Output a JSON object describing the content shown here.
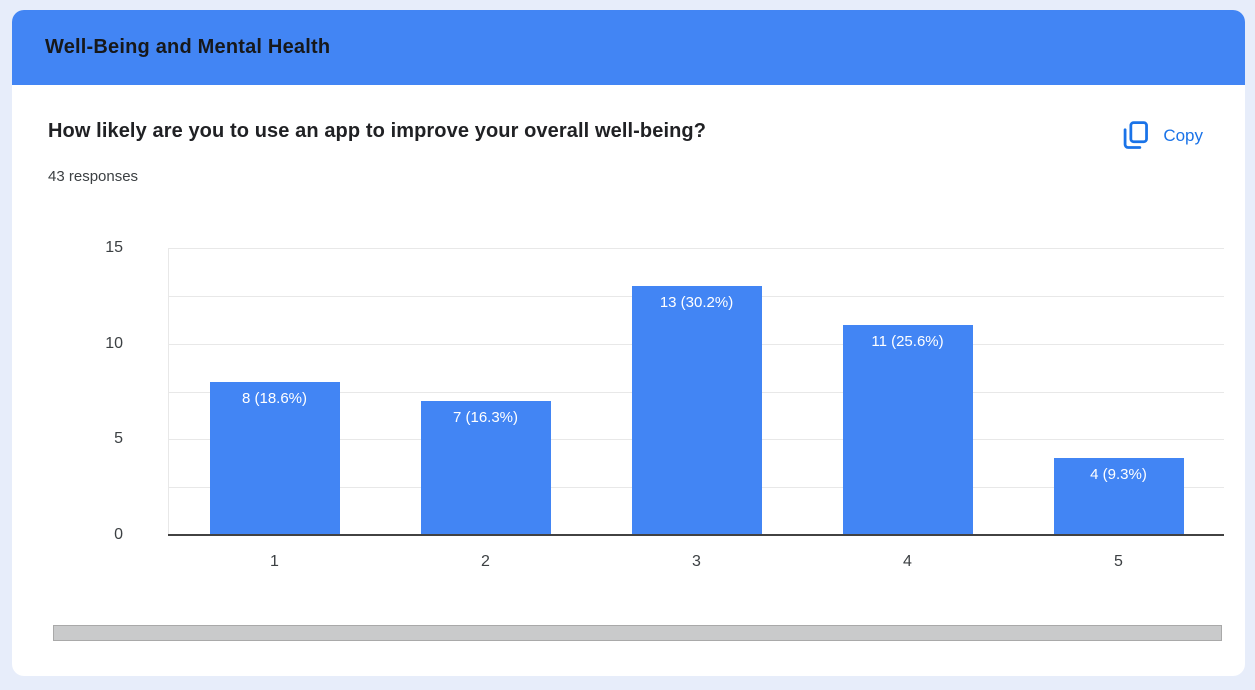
{
  "section_header": {
    "title": "Well-Being and Mental Health"
  },
  "question": {
    "title": "How likely are you to use an app to improve your overall well-being?",
    "responses_label": "43 responses",
    "copy_label": "Copy"
  },
  "colors": {
    "header_bg": "#4285f4",
    "bar": "#4285f4",
    "link": "#1a73e8",
    "page_bg": "#e7edfa"
  },
  "chart_data": {
    "type": "bar",
    "categories": [
      "1",
      "2",
      "3",
      "4",
      "5"
    ],
    "values": [
      8,
      7,
      13,
      11,
      4
    ],
    "labels": [
      "8 (18.6%)",
      "7 (16.3%)",
      "13 (30.2%)",
      "11 (25.6%)",
      "4 (9.3%)"
    ],
    "title": "",
    "xlabel": "",
    "ylabel": "",
    "yticks": [
      0,
      5,
      10,
      15
    ],
    "ylim": [
      0,
      15
    ],
    "grid": true,
    "gridline_step": 2.5,
    "legend": "none",
    "bar_color": "#4285f4"
  }
}
